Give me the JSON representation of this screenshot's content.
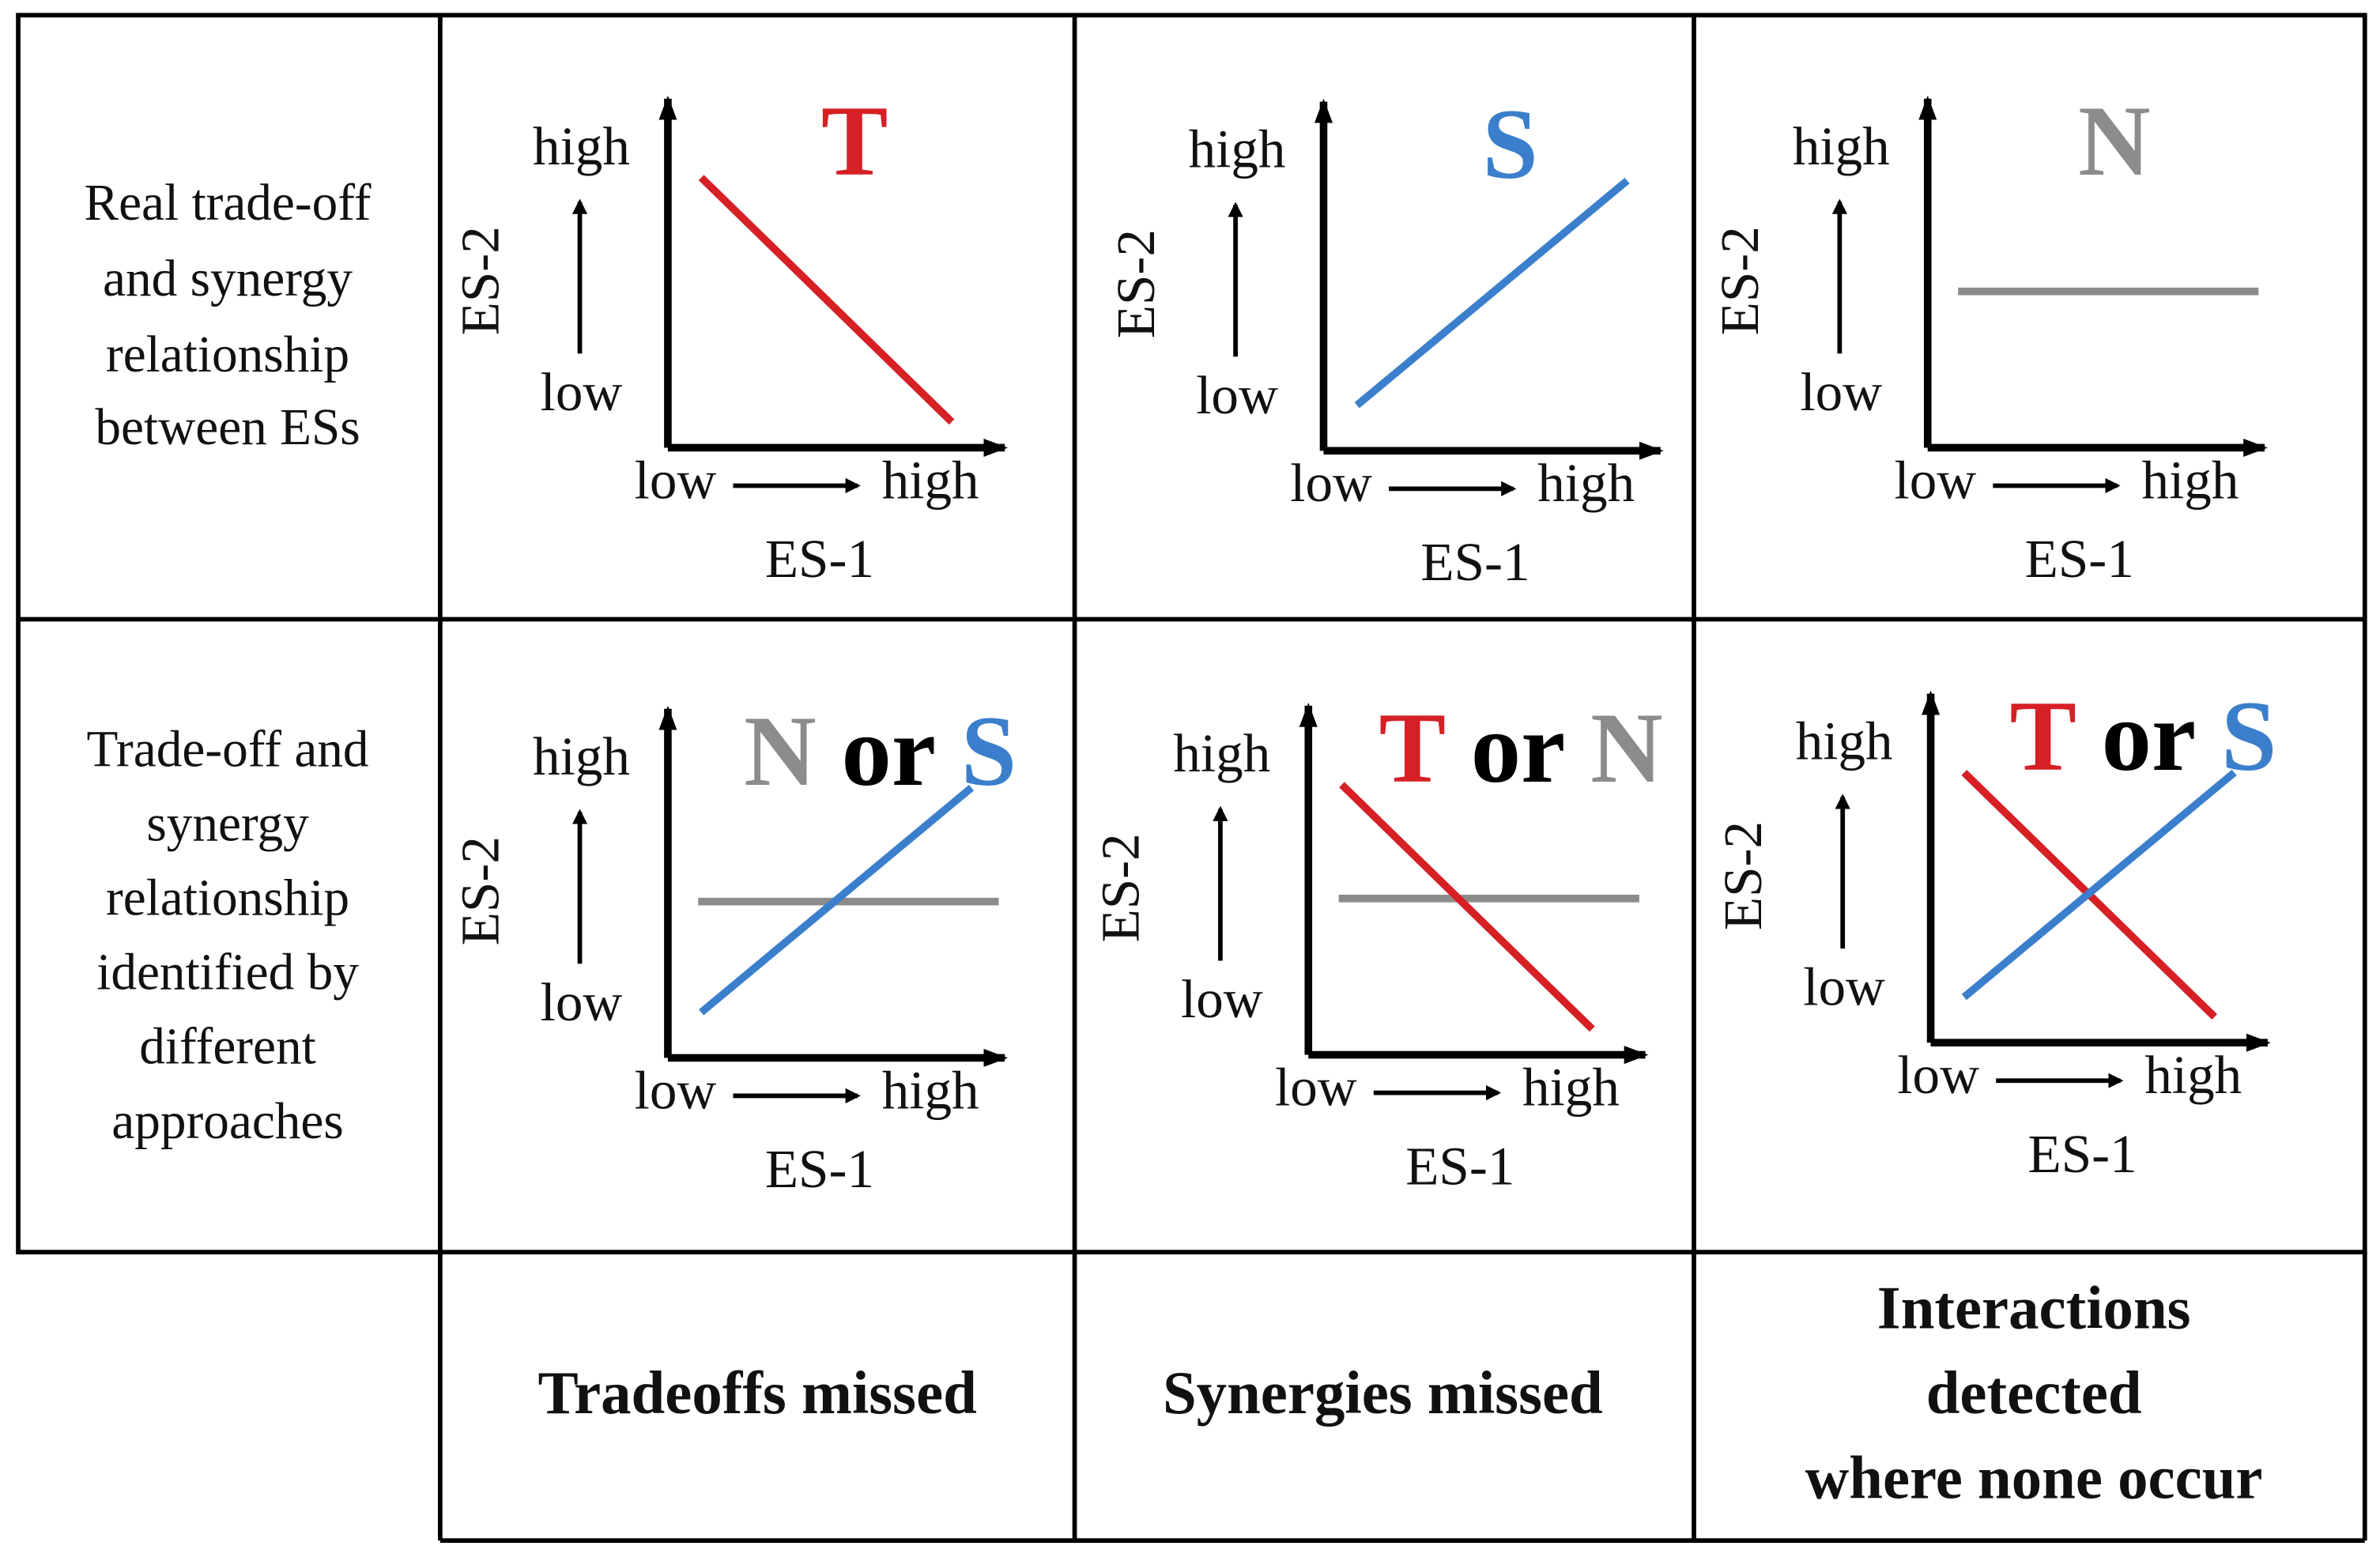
{
  "rows": [
    {
      "label": [
        "Real trade-off",
        "and synergy",
        "relationship",
        "between ESs"
      ]
    },
    {
      "label": [
        "Trade-off and",
        "synergy",
        "relationship",
        "identified by",
        "different",
        "approaches"
      ]
    }
  ],
  "columns": [
    {
      "label": [
        "Tradeoffs missed"
      ]
    },
    {
      "label": [
        "Synergies missed"
      ]
    },
    {
      "label": [
        "Interactions",
        "detected",
        "where none occur"
      ]
    }
  ],
  "panels": [
    {
      "y_axis": "ES-2",
      "y_high": "high",
      "y_low": "low",
      "x_axis": "ES-1",
      "x_low": "low",
      "x_high": "high",
      "legend": [
        {
          "text": "T",
          "color": "#d71f26"
        }
      ]
    },
    {
      "y_axis": "ES-2",
      "y_high": "high",
      "y_low": "low",
      "x_axis": "ES-1",
      "x_low": "low",
      "x_high": "high",
      "legend": [
        {
          "text": "S",
          "color": "#3b7fcc"
        }
      ]
    },
    {
      "y_axis": "ES-2",
      "y_high": "high",
      "y_low": "low",
      "x_axis": "ES-1",
      "x_low": "low",
      "x_high": "high",
      "legend": [
        {
          "text": "N",
          "color": "#8c8c8c"
        }
      ]
    },
    {
      "y_axis": "ES-2",
      "y_high": "high",
      "y_low": "low",
      "x_axis": "ES-1",
      "x_low": "low",
      "x_high": "high",
      "legend": [
        {
          "text": "N",
          "color": "#8c8c8c"
        },
        {
          "text": "or",
          "color": "#000000"
        },
        {
          "text": "S",
          "color": "#3b7fcc"
        }
      ]
    },
    {
      "y_axis": "ES-2",
      "y_high": "high",
      "y_low": "low",
      "x_axis": "ES-1",
      "x_low": "low",
      "x_high": "high",
      "legend": [
        {
          "text": "T",
          "color": "#d71f26"
        },
        {
          "text": "or",
          "color": "#000000"
        },
        {
          "text": "N",
          "color": "#8c8c8c"
        }
      ]
    },
    {
      "y_axis": "ES-2",
      "y_high": "high",
      "y_low": "low",
      "x_axis": "ES-1",
      "x_low": "low",
      "x_high": "high",
      "legend": [
        {
          "text": "T",
          "color": "#d71f26"
        },
        {
          "text": "or",
          "color": "#000000"
        },
        {
          "text": "S",
          "color": "#3b7fcc"
        }
      ]
    }
  ]
}
